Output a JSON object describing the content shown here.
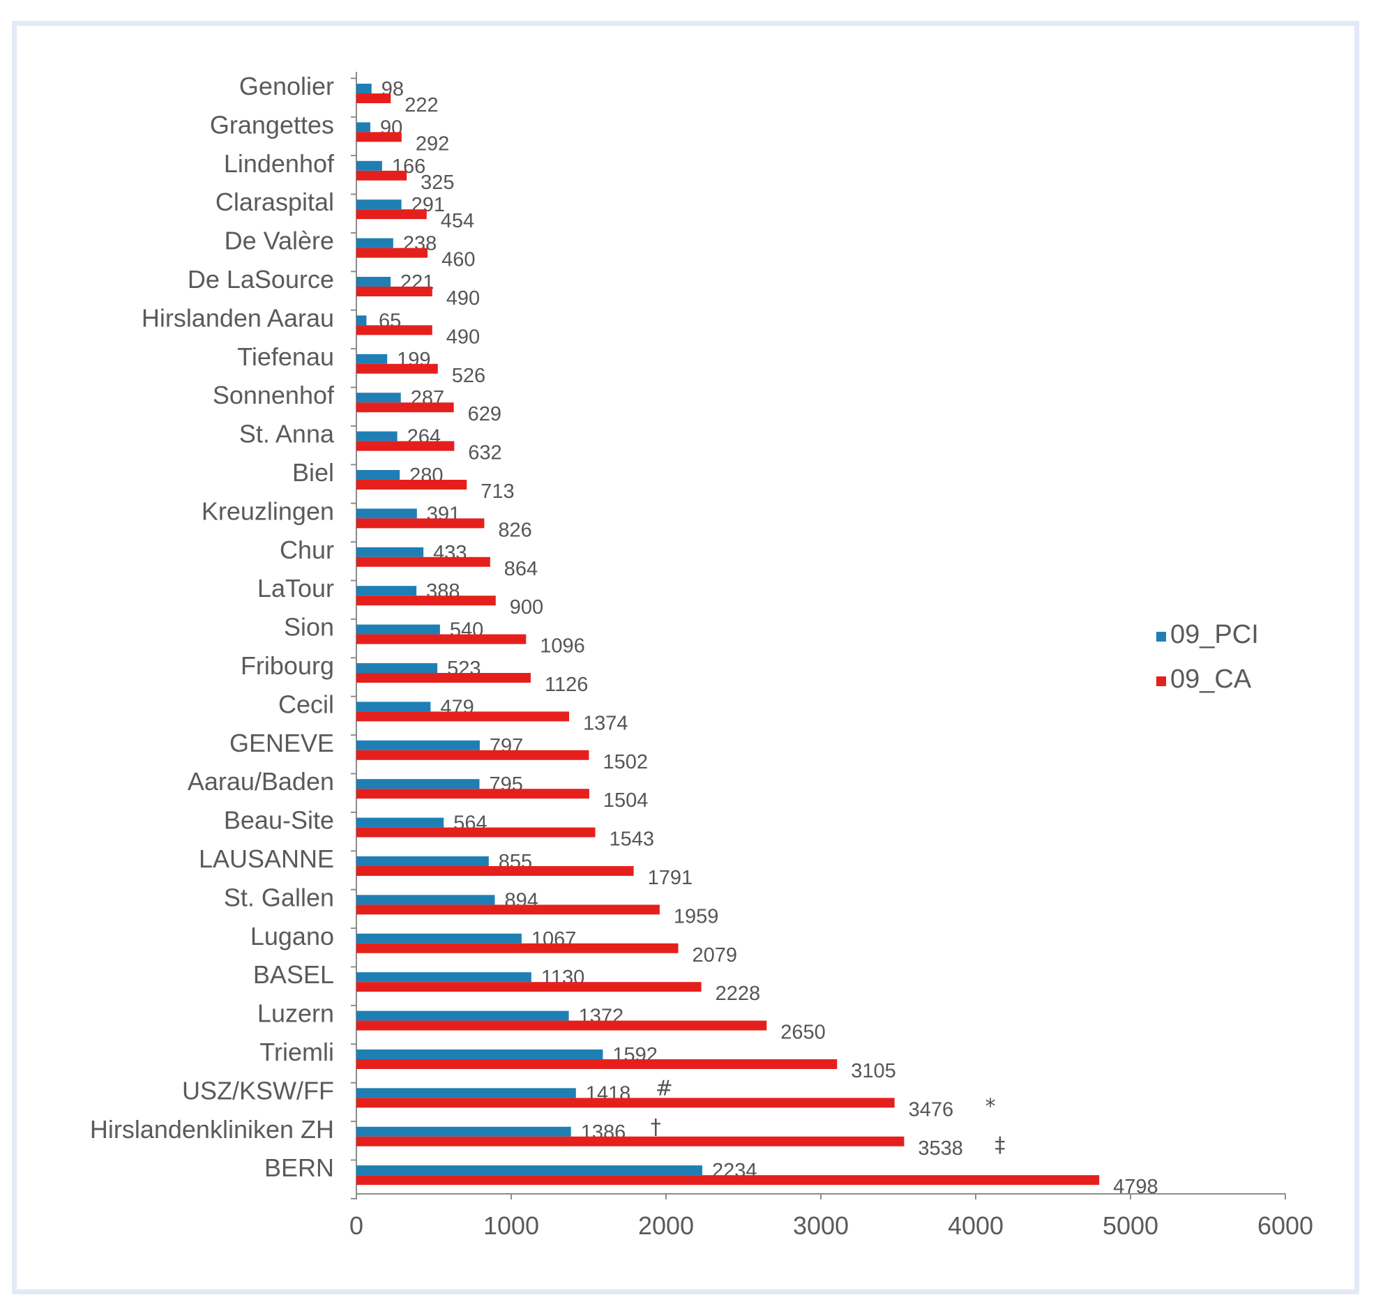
{
  "chart_data": {
    "type": "bar",
    "orientation": "horizontal",
    "categories": [
      "Genolier",
      "Grangettes",
      "Lindenhof",
      "Claraspital",
      "De Valère",
      "De LaSource",
      "Hirslanden Aarau",
      "Tiefenau",
      "Sonnenhof",
      "St. Anna",
      "Biel",
      "Kreuzlingen",
      "Chur",
      "LaTour",
      "Sion",
      "Fribourg",
      "Cecil",
      "GENEVE",
      "Aarau/Baden",
      "Beau-Site",
      "LAUSANNE",
      "St. Gallen",
      "Lugano",
      "BASEL",
      "Luzern",
      "Triemli",
      "USZ/KSW/FF",
      "Hirslandenkliniken ZH",
      "BERN"
    ],
    "series": [
      {
        "name": "09_PCI",
        "color": "#1f7fb4",
        "values": [
          98,
          90,
          166,
          291,
          238,
          221,
          65,
          199,
          287,
          264,
          280,
          391,
          433,
          388,
          540,
          523,
          479,
          797,
          795,
          564,
          855,
          894,
          1067,
          1130,
          1372,
          1592,
          1418,
          1386,
          2234
        ],
        "value_labels": [
          "98",
          "90",
          "166",
          "291",
          "238",
          "221",
          "65",
          "199",
          "287",
          "264",
          "280",
          "391",
          "433",
          "388",
          "540",
          "523",
          "479",
          "797",
          "795",
          "564",
          "855",
          "894",
          "1067",
          "1130",
          "1372",
          "1592",
          "1418",
          "1386",
          "2234"
        ]
      },
      {
        "name": "09_CA",
        "color": "#e5201c",
        "values": [
          222,
          292,
          325,
          454,
          460,
          490,
          490,
          526,
          629,
          632,
          713,
          826,
          864,
          900,
          1096,
          1126,
          1374,
          1502,
          1504,
          1543,
          1791,
          1959,
          2079,
          2228,
          2650,
          3105,
          3476,
          3538,
          4798
        ],
        "value_labels": [
          "222",
          "292",
          "325",
          "454",
          "460",
          "490",
          "490",
          "526",
          "629",
          "632",
          "713",
          "826",
          "864",
          "900",
          "1096",
          "1126",
          "1374",
          "1502",
          "1504",
          "1543",
          "1791",
          "1959",
          "2079",
          "2228",
          "2650",
          "3105",
          "3476",
          "3538",
          "4798"
        ]
      }
    ],
    "annotations": [
      {
        "category": "USZ/KSW/FF",
        "series": "09_PCI",
        "text": "#"
      },
      {
        "category": "USZ/KSW/FF",
        "series": "09_CA",
        "text": "*"
      },
      {
        "category": "Hirslandenkliniken ZH",
        "series": "09_PCI",
        "text": "†"
      },
      {
        "category": "Hirslandenkliniken ZH",
        "series": "09_CA",
        "text": "‡"
      }
    ],
    "xlim": [
      0,
      6000
    ],
    "xticks": [
      0,
      1000,
      2000,
      3000,
      4000,
      5000,
      6000
    ],
    "title": "",
    "xlabel": "",
    "ylabel": "",
    "grid": false,
    "legend": "right"
  }
}
